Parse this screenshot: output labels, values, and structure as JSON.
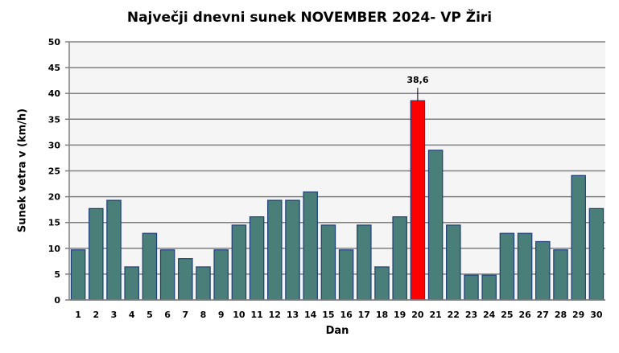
{
  "chart_data": {
    "type": "bar",
    "title": "Največji dnevni sunek NOVEMBER 2024- VP Žiri",
    "xlabel": "Dan",
    "ylabel": "Sunek vetra v (km/h)",
    "ylim": [
      0,
      50
    ],
    "yticks": [
      0,
      5,
      10,
      15,
      20,
      25,
      30,
      35,
      40,
      45,
      50
    ],
    "grid": true,
    "categories": [
      "1",
      "2",
      "3",
      "4",
      "5",
      "6",
      "7",
      "8",
      "9",
      "10",
      "11",
      "12",
      "13",
      "14",
      "15",
      "16",
      "17",
      "18",
      "19",
      "20",
      "21",
      "22",
      "23",
      "24",
      "25",
      "26",
      "27",
      "28",
      "29",
      "30"
    ],
    "values": [
      9.7,
      17.7,
      19.3,
      6.4,
      12.9,
      9.7,
      8.0,
      6.4,
      9.7,
      14.5,
      16.1,
      19.3,
      19.3,
      20.9,
      14.5,
      9.7,
      14.5,
      6.4,
      16.1,
      38.6,
      29.0,
      14.5,
      4.8,
      4.8,
      12.9,
      12.9,
      11.3,
      9.7,
      24.1,
      17.7
    ],
    "highlight": {
      "index": 19,
      "label": "38,6",
      "color": "#ff0000"
    },
    "bar_color": "#4a7e78",
    "bar_edge_color": "#1f3f7a",
    "plot_background": "#f5f5f5"
  }
}
